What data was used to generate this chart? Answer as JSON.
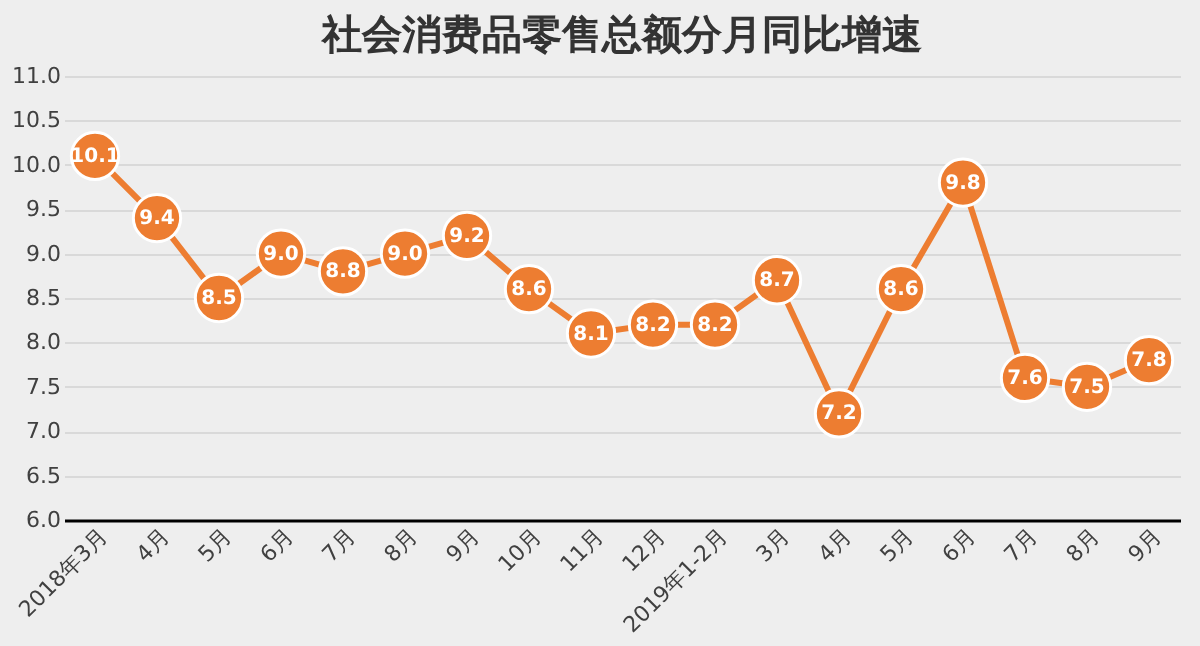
{
  "chart_data": {
    "type": "line",
    "title": "社会消费品零售总额分月同比增速",
    "categories": [
      "2018年3月",
      "4月",
      "5月",
      "6月",
      "7月",
      "8月",
      "9月",
      "10月",
      "11月",
      "12月",
      "2019年1-2月",
      "3月",
      "4月",
      "5月",
      "6月",
      "7月",
      "8月",
      "9月"
    ],
    "series": [
      {
        "color": "#ed7d31",
        "values": [
          10.1,
          9.4,
          8.5,
          9.0,
          8.8,
          9.0,
          9.2,
          8.6,
          8.1,
          8.2,
          8.2,
          8.7,
          7.2,
          8.6,
          9.8,
          7.6,
          7.5,
          7.8
        ]
      }
    ],
    "ylim": [
      6.0,
      11.0
    ],
    "yticks": [
      {
        "value": 6,
        "label": "6.0"
      },
      {
        "value": 6.5,
        "label": "6.5"
      },
      {
        "value": 7,
        "label": "7.0"
      },
      {
        "value": 7.5,
        "label": "7.5"
      },
      {
        "value": 8,
        "label": "8.0"
      },
      {
        "value": 8.5,
        "label": "8.5"
      },
      {
        "value": 9,
        "label": "9.0"
      },
      {
        "value": 9.5,
        "label": "9.5"
      },
      {
        "value": 10,
        "label": "10.0"
      },
      {
        "value": 10.5,
        "label": "10.5"
      },
      {
        "value": 11,
        "label": "11.0"
      }
    ],
    "value_labels": [
      "10.1",
      "9.4",
      "8.5",
      "9.0",
      "8.8",
      "9.0",
      "9.2",
      "8.6",
      "8.1",
      "8.2",
      "8.2",
      "8.7",
      "7.2",
      "8.6",
      "9.8",
      "7.6",
      "7.5",
      "7.8"
    ],
    "grid": "y",
    "marker": "circle",
    "line_style": "solid"
  }
}
